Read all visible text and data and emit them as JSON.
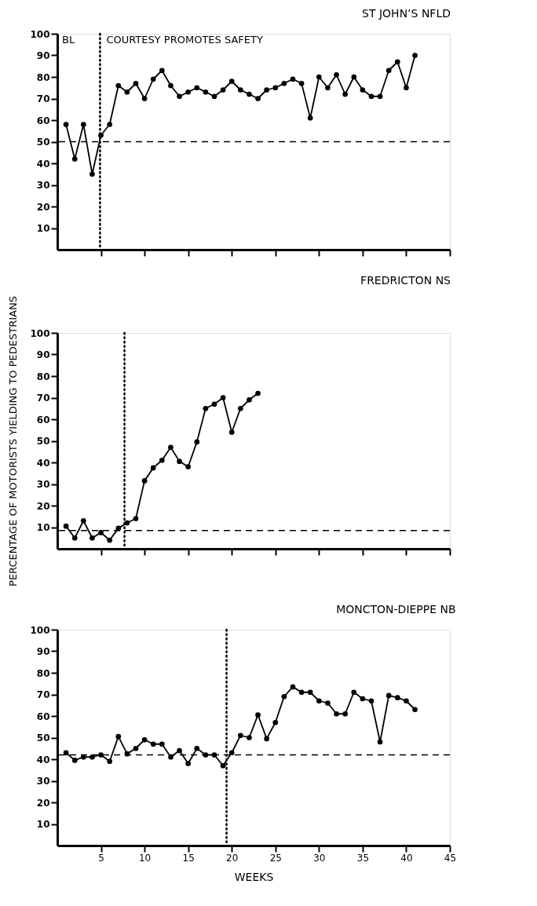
{
  "chart_data": [
    {
      "type": "line",
      "title": "ST JOHN’S NFLD",
      "x": [
        1,
        2,
        3,
        4,
        5,
        6,
        7,
        8,
        9,
        10,
        11,
        12,
        13,
        14,
        15,
        16,
        17,
        18,
        19,
        20,
        21,
        22,
        23,
        24,
        25,
        26,
        27,
        28,
        29,
        30,
        31,
        32,
        33,
        34,
        35,
        36,
        37,
        38,
        39,
        40,
        41
      ],
      "series": [
        {
          "color": "#000000",
          "values": [
            58,
            42,
            58,
            35,
            53,
            58,
            76,
            73,
            77,
            70,
            79,
            83,
            76,
            71,
            73,
            75,
            73,
            71,
            74,
            78,
            74,
            72,
            70,
            74,
            75,
            77,
            79,
            77,
            61,
            80,
            75,
            81,
            72,
            80,
            74,
            71,
            71,
            83,
            87,
            75,
            90
          ]
        }
      ],
      "xlim": [
        0,
        45
      ],
      "xticks": [
        5,
        10,
        15,
        20,
        25,
        30,
        35,
        40,
        45
      ],
      "ylim": [
        0,
        100
      ],
      "yticks": [
        10,
        20,
        30,
        40,
        50,
        60,
        70,
        80,
        90,
        100
      ],
      "ref_lines": [
        {
          "axis": "y",
          "value": 50,
          "line_style": "dashed"
        },
        {
          "axis": "x",
          "value": 4.9,
          "line_style": "dotted"
        }
      ],
      "annotations": [
        "BL",
        "COURTESY PROMOTES SAFETY"
      ],
      "marker": "circle",
      "line_style": "solid",
      "grid": false,
      "tick_labels": "y"
    },
    {
      "type": "line",
      "title": "FREDRICTON NS",
      "ylabel": "PERCENTAGE OF MOTORISTS YIELDING TO PEDESTRIANS",
      "x": [
        1,
        2,
        3,
        4,
        5,
        6,
        7,
        8,
        9,
        10,
        11,
        12,
        13,
        14,
        15,
        16,
        17,
        18,
        19,
        20,
        21,
        22,
        23
      ],
      "series": [
        {
          "color": "#000000",
          "values": [
            10.5,
            5,
            13,
            5,
            7.5,
            4,
            9.5,
            12,
            14,
            31.5,
            37.5,
            41,
            47,
            40.5,
            38,
            49.5,
            65,
            67,
            70,
            54,
            65,
            69,
            72
          ]
        }
      ],
      "xlim": [
        0,
        45
      ],
      "xticks": [
        5,
        10,
        15,
        20,
        25,
        30,
        35,
        40,
        45
      ],
      "ylim": [
        0,
        100
      ],
      "yticks": [
        10,
        20,
        30,
        40,
        50,
        60,
        70,
        80,
        90,
        100
      ],
      "ref_lines": [
        {
          "axis": "y",
          "value": 8.5,
          "line_style": "dashed"
        },
        {
          "axis": "x",
          "value": 7.7,
          "line_style": "dotted"
        }
      ],
      "marker": "circle",
      "line_style": "solid",
      "grid": false,
      "tick_labels": "y"
    },
    {
      "type": "line",
      "title": "MONCTON-DIEPPE NB",
      "xlabel": "WEEKS",
      "x": [
        1,
        2,
        3,
        4,
        5,
        6,
        7,
        8,
        9,
        10,
        11,
        12,
        13,
        14,
        15,
        16,
        17,
        18,
        19,
        20,
        21,
        22,
        23,
        24,
        25,
        26,
        27,
        28,
        29,
        30,
        31,
        32,
        33,
        34,
        35,
        36,
        37,
        38,
        39,
        40,
        41
      ],
      "series": [
        {
          "color": "#000000",
          "values": [
            43,
            39.5,
            41,
            41,
            42,
            39,
            50.5,
            42.5,
            45,
            49,
            47,
            47,
            41,
            44,
            38,
            45,
            42,
            42,
            37,
            43,
            51,
            50,
            60.5,
            49.5,
            57,
            69,
            73.5,
            71,
            71,
            67,
            66,
            61,
            61,
            71,
            68,
            67,
            48,
            69.5,
            68.5,
            67,
            63
          ]
        }
      ],
      "xlim": [
        0,
        45
      ],
      "xticks": [
        5,
        10,
        15,
        20,
        25,
        30,
        35,
        40,
        45
      ],
      "ylim": [
        0,
        100
      ],
      "yticks": [
        10,
        20,
        30,
        40,
        50,
        60,
        70,
        80,
        90,
        100
      ],
      "ref_lines": [
        {
          "axis": "y",
          "value": 42,
          "line_style": "dashed"
        },
        {
          "axis": "x",
          "value": 19.4,
          "line_style": "dotted"
        }
      ],
      "marker": "circle",
      "line_style": "solid",
      "grid": false
    }
  ]
}
